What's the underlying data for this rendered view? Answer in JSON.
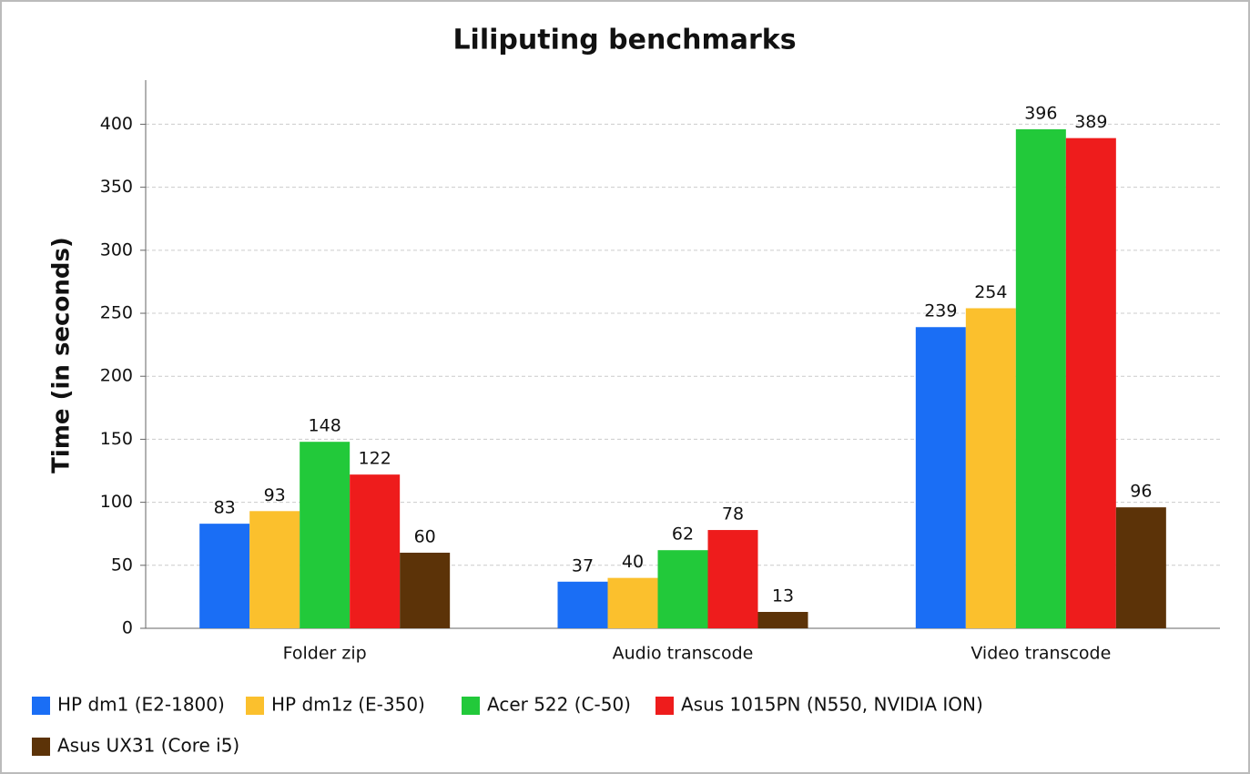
{
  "chart_data": {
    "type": "bar",
    "title": "Liliputing benchmarks",
    "y_label": "Time (in seconds)",
    "categories": [
      "Folder zip",
      "Audio transcode",
      "Video transcode"
    ],
    "series": [
      {
        "name": "HP dm1 (E2-1800)",
        "color": "#1a6ef5",
        "values": [
          83,
          37,
          239
        ]
      },
      {
        "name": "HP dm1z (E-350)",
        "color": "#fbc02d",
        "values": [
          93,
          40,
          254
        ]
      },
      {
        "name": "Acer 522 (C-50)",
        "color": "#22c93a",
        "values": [
          148,
          62,
          396
        ]
      },
      {
        "name": "Asus 1015PN (N550, NVIDIA ION)",
        "color": "#ee1c1c",
        "values": [
          122,
          78,
          389
        ]
      },
      {
        "name": "Asus UX31 (Core i5)",
        "color": "#5c3308",
        "values": [
          60,
          13,
          96
        ]
      }
    ],
    "ylim": [
      0,
      435
    ],
    "yticks": [
      0,
      50,
      100,
      150,
      200,
      250,
      300,
      350,
      400
    ],
    "grid": true
  }
}
